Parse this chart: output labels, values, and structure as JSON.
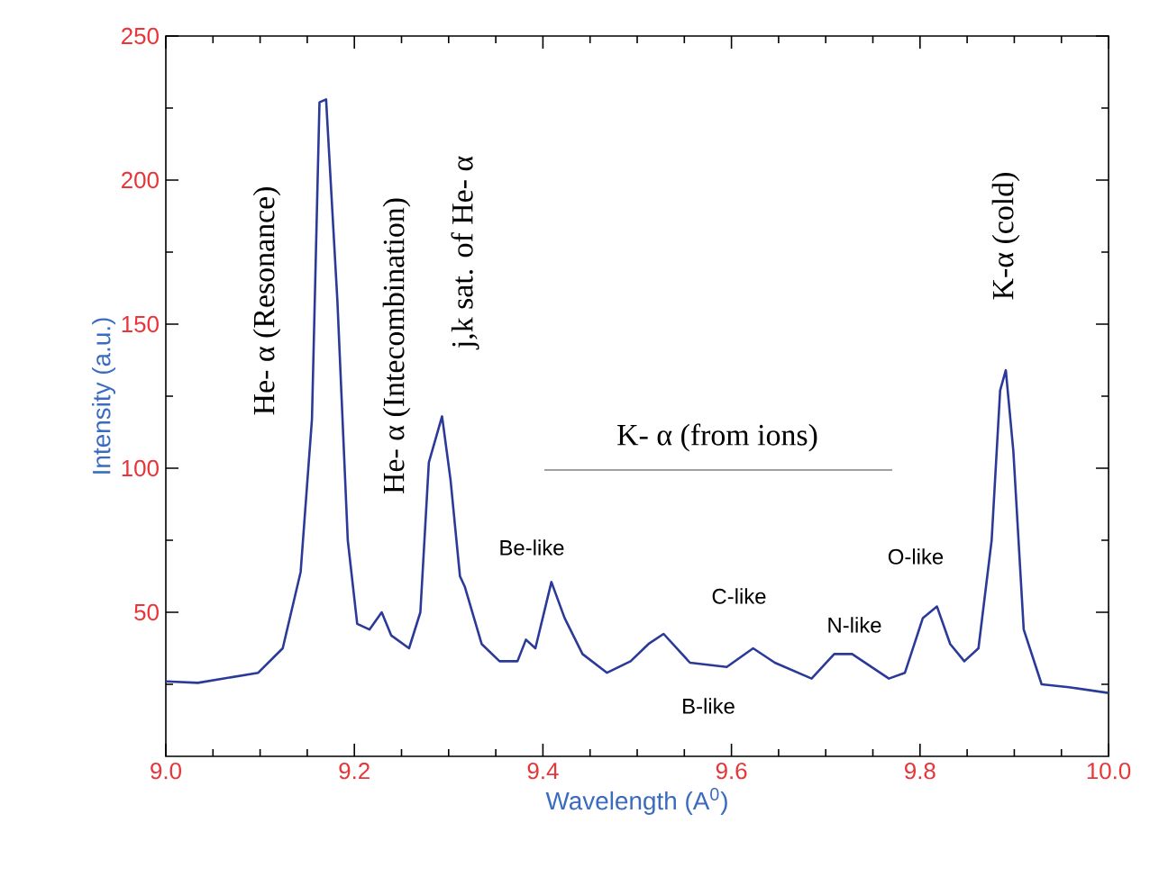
{
  "chart_data": {
    "type": "line",
    "xlabel": "Wavelength (A$^{0}$)",
    "ylabel": "Intensity (a.u.)",
    "xlim": [
      9.0,
      10.0
    ],
    "ylim": [
      0,
      250
    ],
    "xticks": [
      {
        "value": 9.0,
        "label": "9.0"
      },
      {
        "value": 9.05,
        "label": null
      },
      {
        "value": 9.1,
        "label": null
      },
      {
        "value": 9.15,
        "label": null
      },
      {
        "value": 9.2,
        "label": "9.2"
      },
      {
        "value": 9.25,
        "label": null
      },
      {
        "value": 9.3,
        "label": null
      },
      {
        "value": 9.35,
        "label": null
      },
      {
        "value": 9.4,
        "label": "9.4"
      },
      {
        "value": 9.45,
        "label": null
      },
      {
        "value": 9.5,
        "label": null
      },
      {
        "value": 9.55,
        "label": null
      },
      {
        "value": 9.6,
        "label": "9.6"
      },
      {
        "value": 9.65,
        "label": null
      },
      {
        "value": 9.7,
        "label": null
      },
      {
        "value": 9.75,
        "label": null
      },
      {
        "value": 9.8,
        "label": "9.8"
      },
      {
        "value": 9.85,
        "label": null
      },
      {
        "value": 9.9,
        "label": null
      },
      {
        "value": 9.95,
        "label": null
      },
      {
        "value": 10.0,
        "label": "10.0"
      }
    ],
    "yticks": [
      {
        "value": 25,
        "label": null
      },
      50,
      {
        "value": 75,
        "label": null
      },
      100,
      {
        "value": 125,
        "label": null
      },
      150,
      {
        "value": 175,
        "label": null
      },
      200,
      {
        "value": 225,
        "label": null
      },
      250
    ],
    "series": [
      {
        "color": "#2b3a98",
        "x": [
          9.0,
          9.034,
          9.098,
          9.124,
          9.143,
          9.155,
          9.163,
          9.17,
          9.182,
          9.193,
          9.203,
          9.216,
          9.229,
          9.239,
          9.258,
          9.27,
          9.279,
          9.293,
          9.302,
          9.312,
          9.317,
          9.335,
          9.354,
          9.373,
          9.382,
          9.392,
          9.409,
          9.423,
          9.442,
          9.468,
          9.493,
          9.512,
          9.528,
          9.556,
          9.595,
          9.623,
          9.646,
          9.685,
          9.709,
          9.728,
          9.767,
          9.784,
          9.803,
          9.818,
          9.832,
          9.847,
          9.862,
          9.876,
          9.885,
          9.891,
          9.899,
          9.91,
          9.929,
          9.958,
          10.0
        ],
        "values": [
          26,
          25.5,
          29,
          37.5,
          64,
          117,
          227,
          228,
          158,
          75,
          46,
          44,
          50,
          42,
          37.5,
          50,
          102,
          118,
          96,
          62.5,
          59,
          39,
          33,
          33,
          40.5,
          37.5,
          60.5,
          48,
          35.5,
          29,
          33,
          39,
          42.5,
          32.5,
          31,
          37.5,
          32.5,
          27,
          35.5,
          35.5,
          27,
          29,
          48,
          52,
          39,
          33,
          37.5,
          75,
          127,
          134,
          106,
          44,
          25,
          24,
          22
        ]
      }
    ],
    "annotations": [
      "He- α (Resonance)",
      "He- α (Intecombination)",
      "j,k sat. of He- α",
      "Be-like",
      "B-like",
      "C-like",
      "N-like",
      "O-like",
      "K-α (cold)",
      "K- α (from ions)"
    ]
  }
}
